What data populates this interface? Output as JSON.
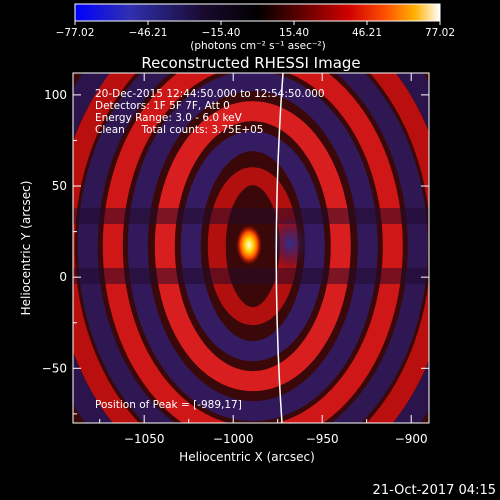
{
  "chart_data": {
    "type": "heatmap",
    "title": "Reconstructed RHESSI Image",
    "xlabel": "Heliocentric X (arcsec)",
    "ylabel": "Heliocentric Y (arcsec)",
    "xlim": [
      -1090,
      -890
    ],
    "ylim": [
      -80,
      112
    ],
    "x_ticks": [
      -1050,
      -1000,
      -950,
      -900
    ],
    "y_ticks": [
      -50,
      0,
      50,
      100
    ],
    "x_tick_labels": [
      "−1050",
      "−1000",
      "−950",
      "−900"
    ],
    "y_tick_labels": [
      "−50",
      "0",
      "50",
      "100"
    ],
    "colorbar": {
      "range": [
        -77.02,
        77.02
      ],
      "ticks": [
        "−77.02",
        "−46.21",
        "−15.40",
        "15.40",
        "46.21",
        "77.02"
      ],
      "unit_label": "(photons cm⁻² s⁻¹ asec⁻²)",
      "colors": [
        "#0000ff",
        "#2a2aa6",
        "#1a0a30",
        "#000000",
        "#5a0000",
        "#c00000",
        "#ff4000",
        "#ffb000",
        "#ffffc0",
        "#ffffff"
      ]
    },
    "info_lines": [
      "20-Dec-2015 12:44:50.000 to 12:54:50.000",
      "Detectors: 1F 5F 7F, Att 0",
      "Energy Range: 3.0 - 6.0 keV",
      "Clean     Total counts: 3.75E+05"
    ],
    "peak_label": "Position of Peak = [-989,17]",
    "peak": [
      -989,
      17
    ],
    "limb_color": "#ffffff"
  },
  "footer": {
    "timestamp": "21-Oct-2017 04:15"
  }
}
